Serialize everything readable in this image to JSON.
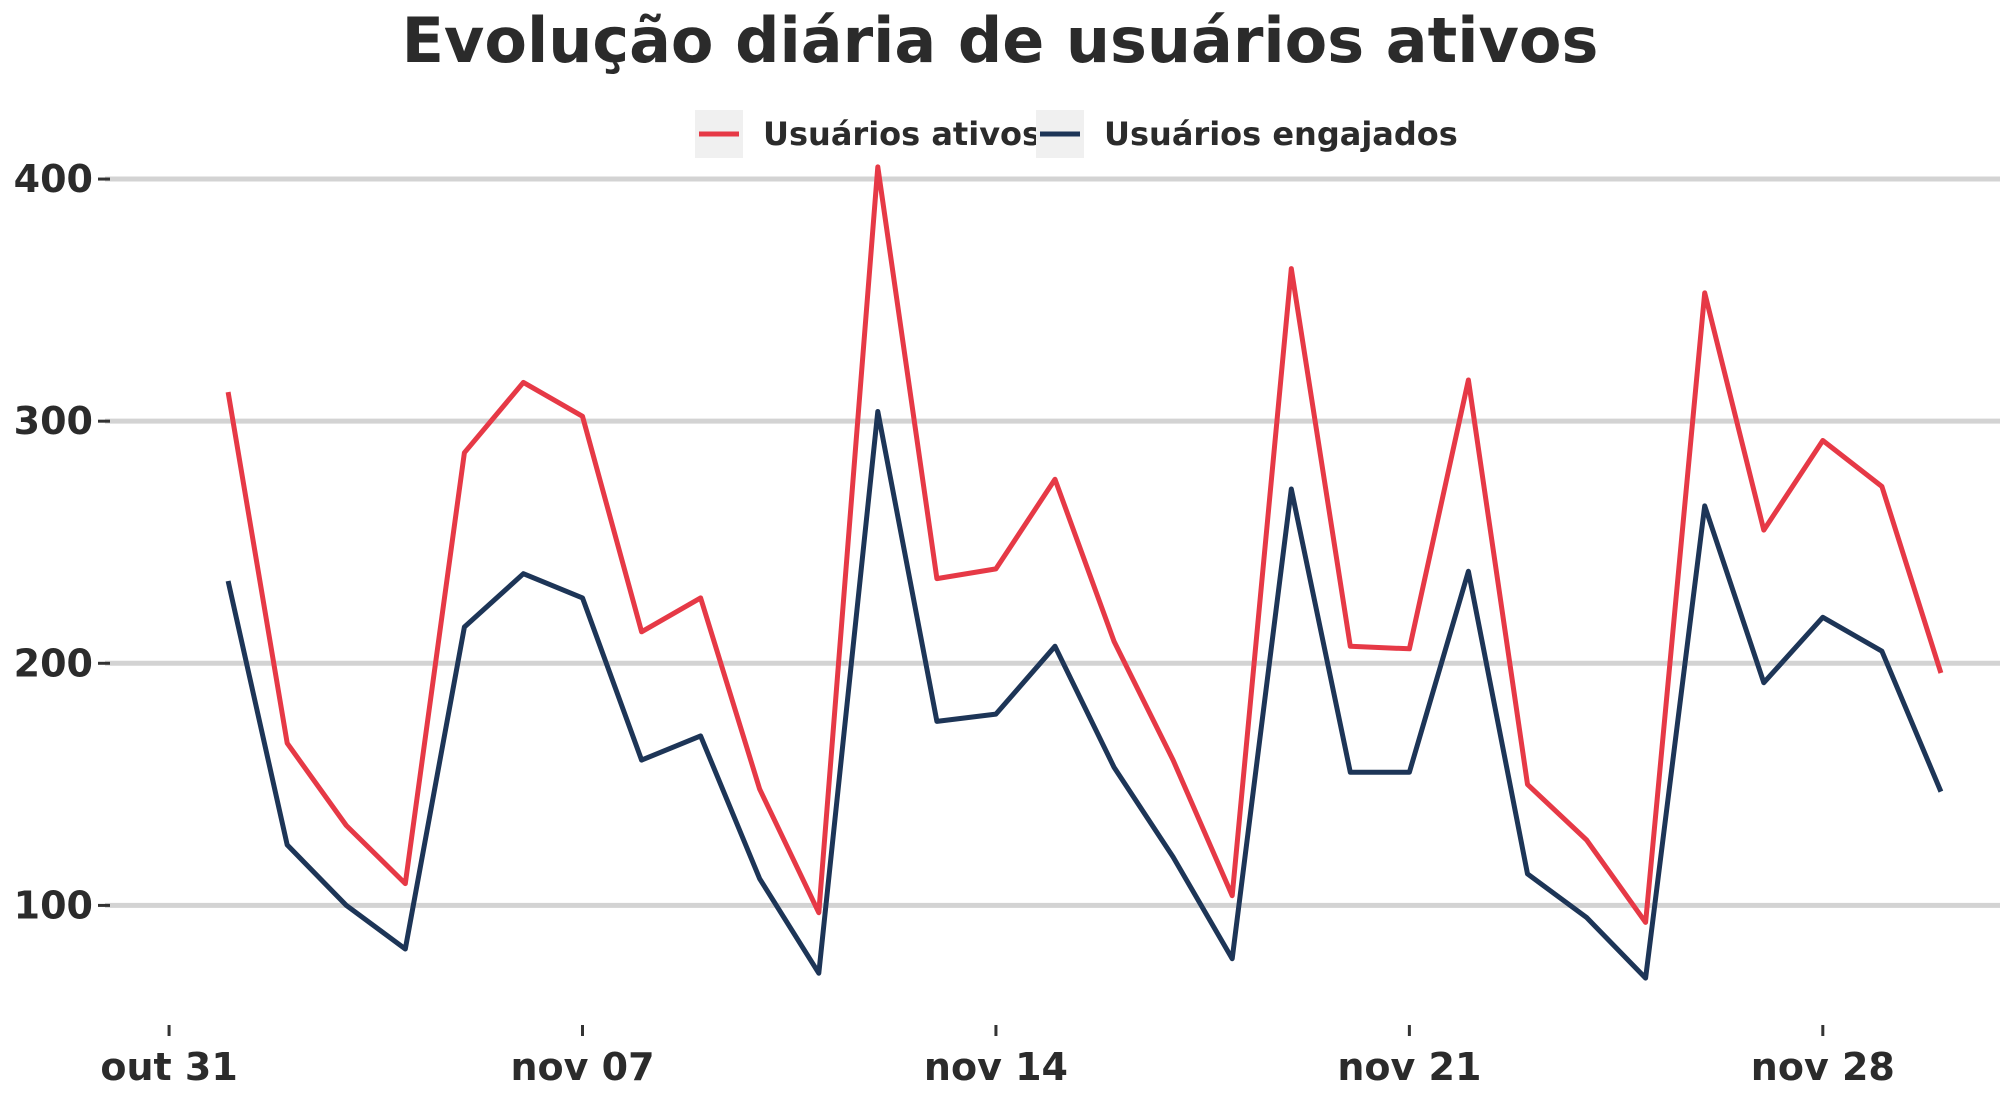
{
  "chart_data": {
    "type": "line",
    "title": "Evolução diária de usuários ativos",
    "xlabel": "",
    "ylabel": "",
    "x": [
      "2023-11-01",
      "2023-11-02",
      "2023-11-03",
      "2023-11-04",
      "2023-11-05",
      "2023-11-06",
      "2023-11-07",
      "2023-11-08",
      "2023-11-09",
      "2023-11-10",
      "2023-11-11",
      "2023-11-12",
      "2023-11-13",
      "2023-11-14",
      "2023-11-15",
      "2023-11-16",
      "2023-11-17",
      "2023-11-18",
      "2023-11-19",
      "2023-11-20",
      "2023-11-21",
      "2023-11-22",
      "2023-11-23",
      "2023-11-24",
      "2023-11-25",
      "2023-11-26",
      "2023-11-27",
      "2023-11-28",
      "2023-11-29",
      "2023-11-30"
    ],
    "xlim": [
      "2023-10-30",
      "2023-12-01"
    ],
    "ylim": [
      63,
      412
    ],
    "x_ticks": [
      {
        "date": "2023-10-31",
        "label": "out 31"
      },
      {
        "date": "2023-11-07",
        "label": "nov 07"
      },
      {
        "date": "2023-11-14",
        "label": "nov 14"
      },
      {
        "date": "2023-11-21",
        "label": "nov 21"
      },
      {
        "date": "2023-11-28",
        "label": "nov 28"
      }
    ],
    "y_ticks": [
      100,
      200,
      300,
      400
    ],
    "grid": "horizontal",
    "legend": "top",
    "series": [
      {
        "name": "Usuários ativos",
        "color": "#e63946",
        "values": [
          312,
          167,
          133,
          109,
          287,
          316,
          302,
          213,
          227,
          148,
          97,
          405,
          235,
          239,
          276,
          209,
          160,
          104,
          363,
          207,
          206,
          317,
          150,
          127,
          93,
          353,
          255,
          292,
          273,
          196
        ]
      },
      {
        "name": "Usuários engajados",
        "color": "#1d3557",
        "values": [
          234,
          125,
          100,
          82,
          215,
          237,
          227,
          160,
          170,
          111,
          72,
          304,
          176,
          179,
          207,
          157,
          120,
          78,
          272,
          155,
          155,
          238,
          113,
          95,
          70,
          265,
          192,
          219,
          205,
          147
        ]
      }
    ]
  }
}
